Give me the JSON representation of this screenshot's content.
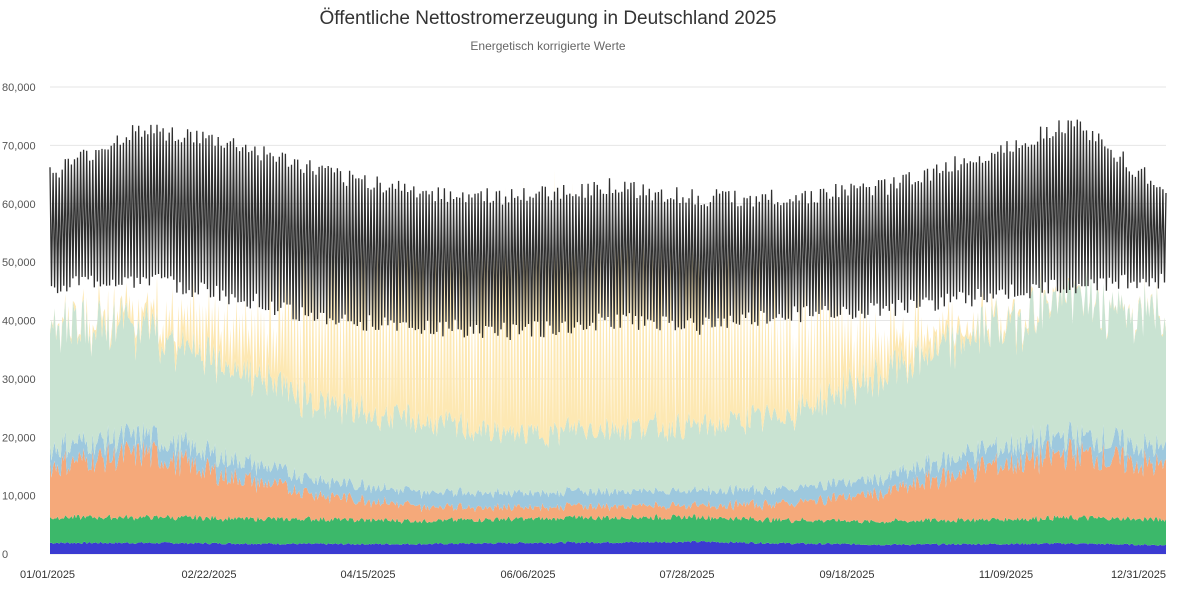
{
  "chart_data": {
    "type": "area",
    "title": "Öffentliche Nettostromerzeugung in Deutschland 2025",
    "subtitle": "Energetisch korrigierte Werte",
    "x_ticks": [
      "01/01/2025",
      "02/22/2025",
      "04/15/2025",
      "06/06/2025",
      "07/28/2025",
      "09/18/2025",
      "11/09/2025",
      "12/31/2025"
    ],
    "x_range": [
      "2025-01-01",
      "2025-12-31"
    ],
    "y_ticks": [
      "0",
      "10,000",
      "20,000",
      "30,000",
      "40,000",
      "50,000",
      "60,000",
      "70,000",
      "80,000"
    ],
    "ylim": [
      0,
      80000
    ],
    "grid": true,
    "stacking": "stacked areas with a load line on top",
    "monthly_profile": {
      "x": [
        "01/01/2025",
        "02/01/2025",
        "03/01/2025",
        "04/01/2025",
        "05/01/2025",
        "06/01/2025",
        "07/01/2025",
        "08/01/2025",
        "09/01/2025",
        "10/01/2025",
        "11/01/2025",
        "12/01/2025",
        "12/31/2025"
      ],
      "series": [
        {
          "color": "#3b3bd1",
          "values": [
            1900,
            1900,
            1800,
            1700,
            1700,
            1900,
            2000,
            2100,
            1800,
            1600,
            1700,
            1800,
            1500
          ]
        },
        {
          "color": "#3cb86a",
          "values": [
            4400,
            4400,
            4300,
            4200,
            4000,
            4100,
            4300,
            4200,
            4000,
            4000,
            4200,
            4400,
            4400
          ]
        },
        {
          "color": "#f5a97a",
          "values": [
            9000,
            11000,
            7000,
            4000,
            2500,
            2000,
            2000,
            2000,
            3000,
            5000,
            9000,
            11000,
            9000
          ]
        },
        {
          "color": "#9dc8de",
          "values": [
            3000,
            3000,
            3000,
            2500,
            2500,
            2500,
            2500,
            2500,
            2500,
            2500,
            3000,
            3000,
            3000
          ]
        },
        {
          "color": "#c9e3d2",
          "values": [
            22000,
            18000,
            16000,
            13000,
            12000,
            10000,
            11000,
            11000,
            13000,
            18000,
            20000,
            24000,
            22000
          ]
        },
        {
          "color": "#fde8b3",
          "values": [
            300,
            2000,
            6000,
            12000,
            16000,
            19000,
            18000,
            16000,
            11000,
            5000,
            1200,
            200,
            300
          ]
        }
      ],
      "load_line": {
        "color": "#2f2f2f",
        "min_values": [
          46000,
          47000,
          44000,
          40000,
          39000,
          38000,
          40000,
          39000,
          41000,
          42000,
          44000,
          46000,
          47000
        ],
        "max_values": [
          65000,
          73000,
          70000,
          65000,
          62000,
          61000,
          63000,
          61000,
          61000,
          63000,
          68000,
          74000,
          62000
        ]
      }
    }
  }
}
